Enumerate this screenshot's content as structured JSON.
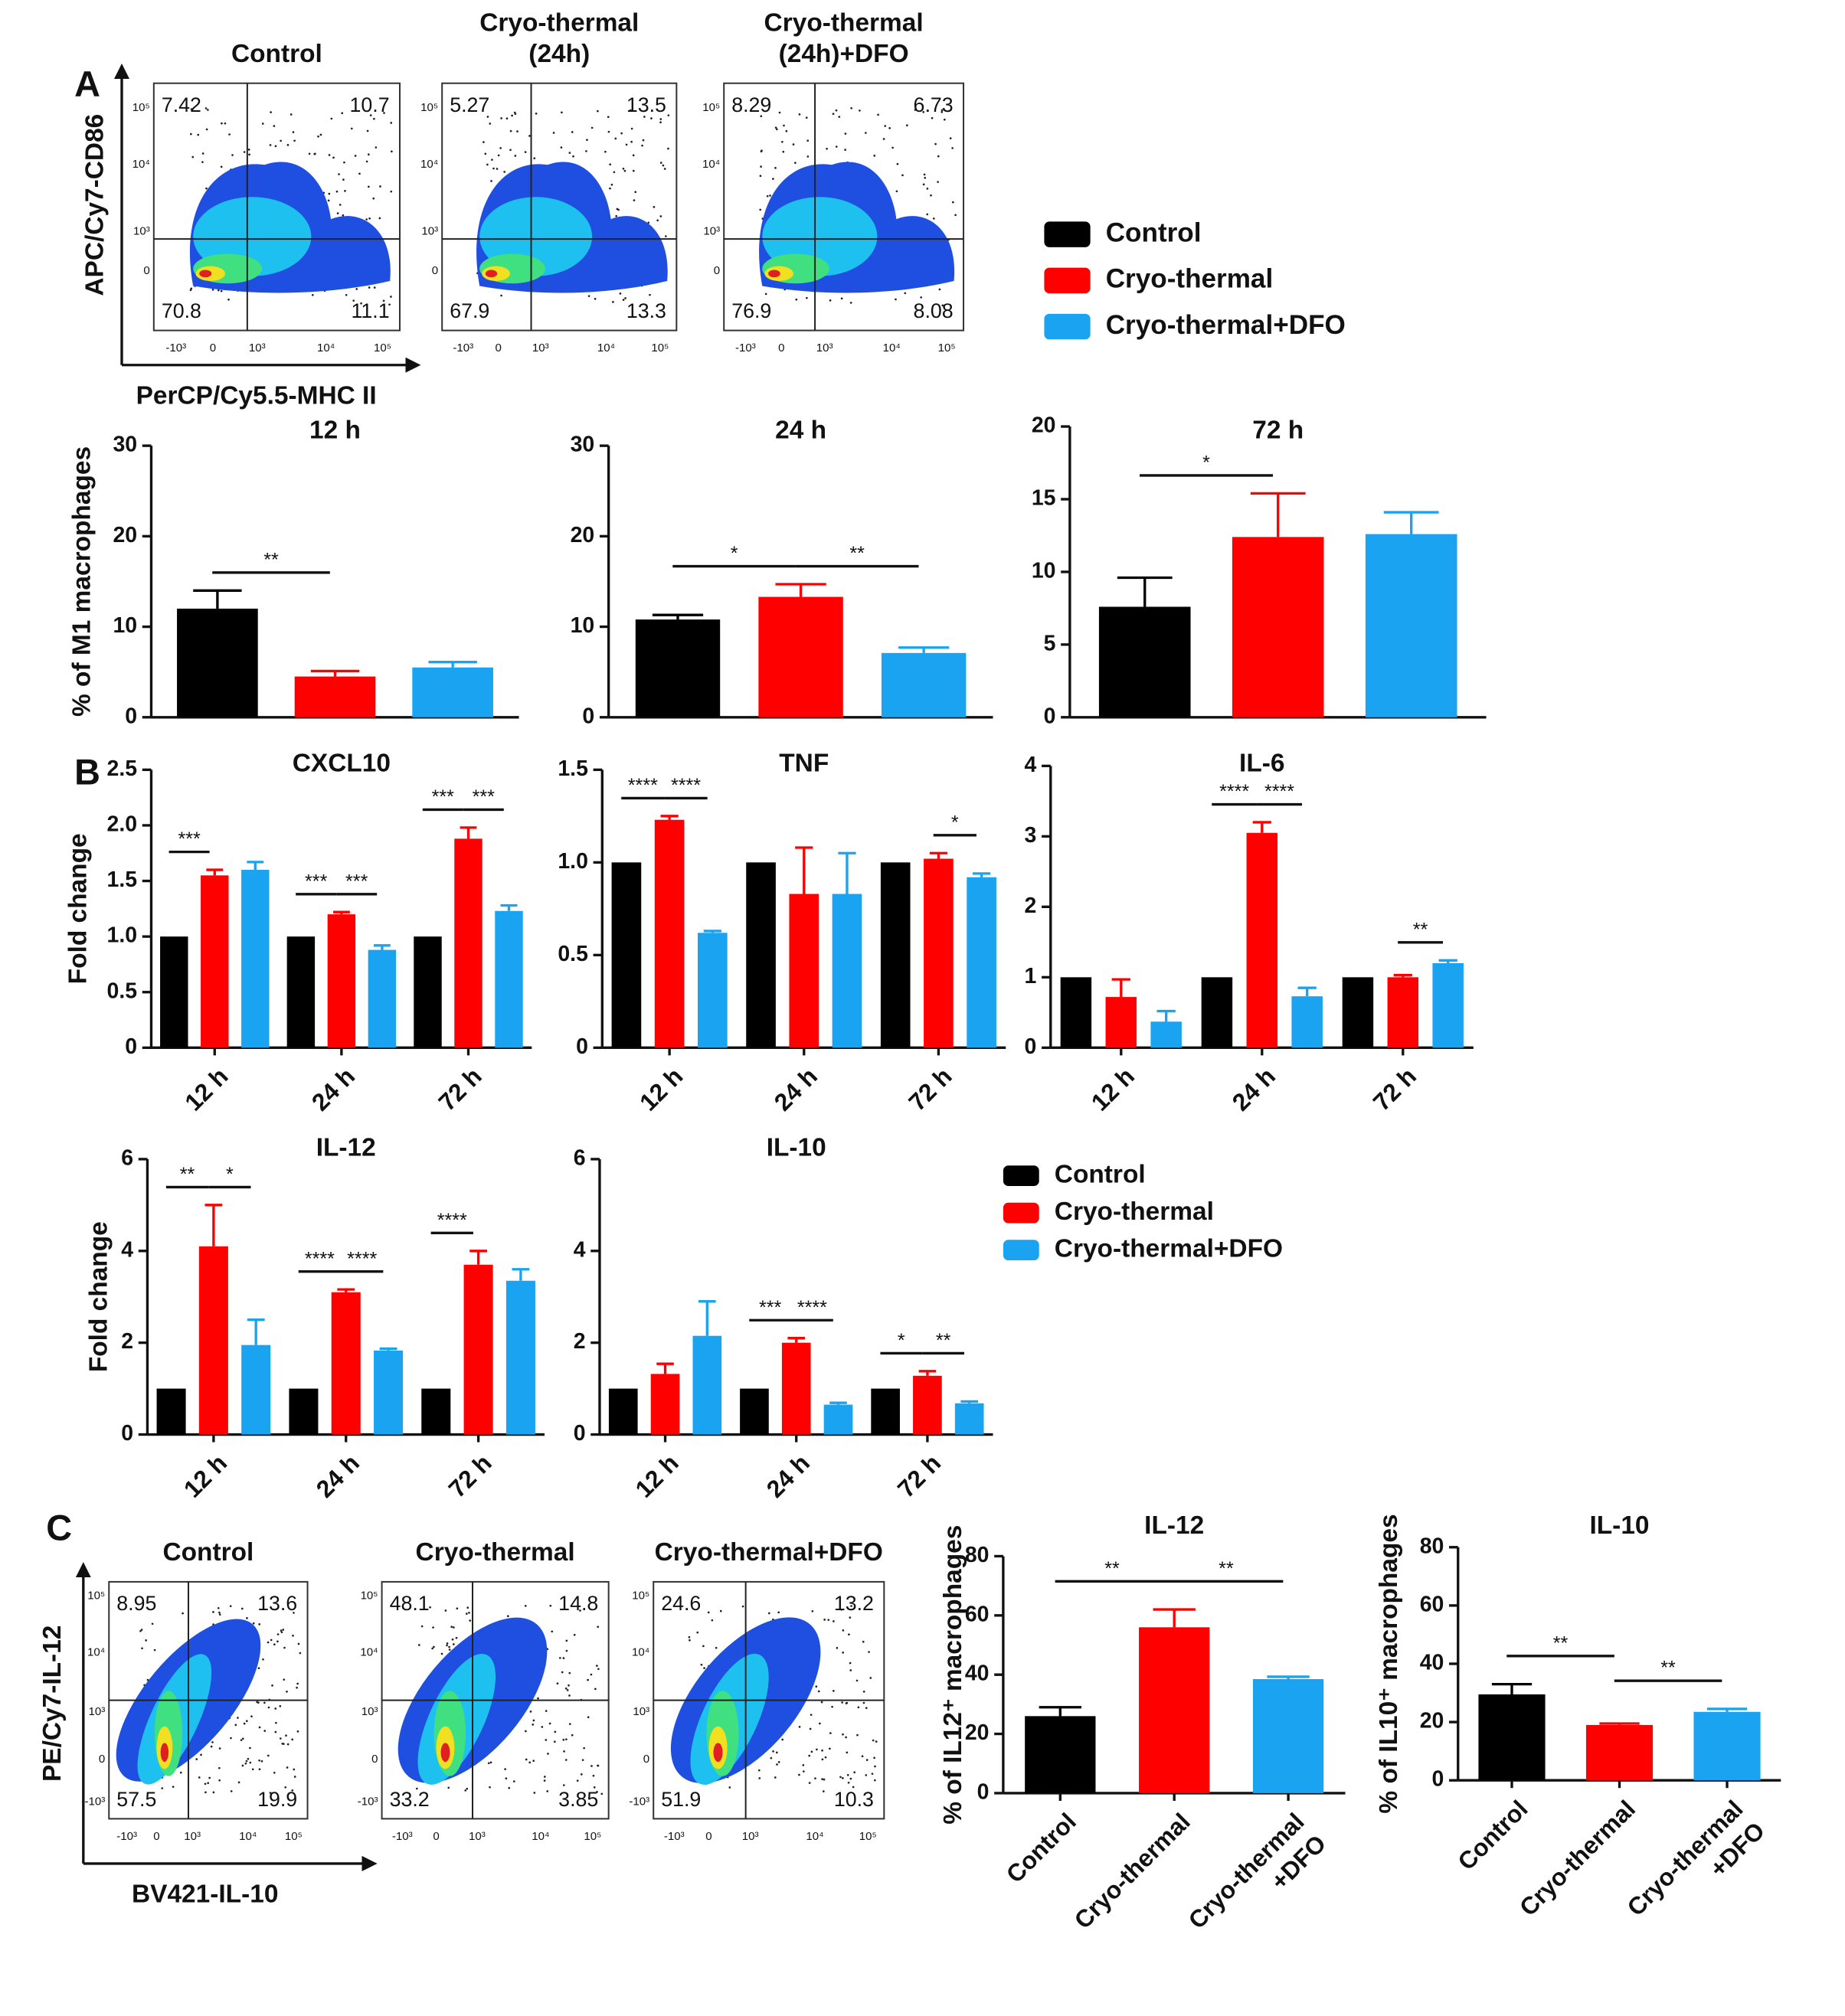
{
  "panel_labels": [
    "A",
    "B",
    "C"
  ],
  "flow_a": {
    "y_label": "APC/Cy7-CD86",
    "x_label": "PerCP/Cy5.5-MHC II",
    "y_ticks": [
      "10⁵",
      "10⁴",
      "10³",
      "0"
    ],
    "x_ticks": [
      "-10³",
      "0",
      "10³",
      "10⁴",
      "10⁵"
    ],
    "panels": [
      {
        "title": [
          "Control"
        ],
        "quadrants": [
          7.42,
          10.7,
          70.8,
          11.1
        ]
      },
      {
        "title": [
          "Cryo-thermal",
          "(24h)"
        ],
        "quadrants": [
          5.27,
          13.5,
          67.9,
          13.3
        ]
      },
      {
        "title": [
          "Cryo-thermal",
          "(24h)+DFO"
        ],
        "quadrants": [
          8.29,
          6.73,
          76.9,
          8.08
        ]
      }
    ]
  },
  "flow_c": {
    "y_label": "PE/Cy7-IL-12",
    "x_label": "BV421-IL-10",
    "y_ticks": [
      "10⁵",
      "10⁴",
      "10³",
      "0",
      "-10³"
    ],
    "x_ticks": [
      "-10³",
      "0",
      "10³",
      "10⁴",
      "10⁵"
    ],
    "panels": [
      {
        "title": [
          "Control"
        ],
        "quadrants": [
          8.95,
          13.6,
          57.5,
          19.9
        ]
      },
      {
        "title": [
          "Cryo-thermal"
        ],
        "quadrants": [
          48.1,
          14.8,
          33.2,
          3.85
        ]
      },
      {
        "title": [
          "Cryo-thermal+DFO"
        ],
        "quadrants": [
          24.6,
          13.2,
          51.9,
          10.3
        ]
      }
    ]
  },
  "chart_data": [
    {
      "type": "bar",
      "title": "12 h",
      "y_label": "% of M1 macrophages",
      "categories": [
        null
      ],
      "series": [
        {
          "name": "Control",
          "color": "#000000",
          "values": [
            12
          ],
          "errors": [
            2
          ]
        },
        {
          "name": "Cryo-thermal",
          "color": "#ff0000",
          "values": [
            4.5
          ],
          "errors": [
            0.6
          ]
        },
        {
          "name": "Cryo-thermal+DFO",
          "color": "#1aa3f0",
          "values": [
            5.5
          ],
          "errors": [
            0.6
          ]
        }
      ],
      "ylim": [
        0,
        30
      ],
      "yticks": [
        0,
        10,
        20,
        30
      ],
      "annotations": [
        {
          "text": "**",
          "category": 0,
          "between": [
            0,
            1
          ]
        }
      ]
    },
    {
      "type": "bar",
      "title": "24 h",
      "categories": [
        null
      ],
      "series": [
        {
          "name": "Control",
          "color": "#000000",
          "values": [
            10.8
          ],
          "errors": [
            0.5
          ]
        },
        {
          "name": "Cryo-thermal",
          "color": "#ff0000",
          "values": [
            13.3
          ],
          "errors": [
            1.4
          ]
        },
        {
          "name": "Cryo-thermal+DFO",
          "color": "#1aa3f0",
          "values": [
            7.1
          ],
          "errors": [
            0.6
          ]
        }
      ],
      "ylim": [
        0,
        30
      ],
      "yticks": [
        0,
        10,
        20,
        30
      ],
      "annotations": [
        {
          "text": "*",
          "category": 0,
          "between": [
            0,
            1
          ]
        },
        {
          "text": "**",
          "category": 0,
          "between": [
            1,
            2
          ]
        }
      ]
    },
    {
      "type": "bar",
      "title": "72 h",
      "categories": [
        null
      ],
      "series": [
        {
          "name": "Control",
          "color": "#000000",
          "values": [
            7.6
          ],
          "errors": [
            2.0
          ]
        },
        {
          "name": "Cryo-thermal",
          "color": "#ff0000",
          "values": [
            12.4
          ],
          "errors": [
            3.0
          ]
        },
        {
          "name": "Cryo-thermal+DFO",
          "color": "#1aa3f0",
          "values": [
            12.6
          ],
          "errors": [
            1.5
          ]
        }
      ],
      "ylim": [
        0,
        20
      ],
      "yticks": [
        0,
        5,
        10,
        15,
        20
      ],
      "annotations": [
        {
          "text": "*",
          "category": 0,
          "between": [
            0,
            1
          ]
        }
      ]
    },
    {
      "type": "bar",
      "title": "CXCL10",
      "y_label": "Fold change",
      "categories": [
        "12 h",
        "24 h",
        "72 h"
      ],
      "series": [
        {
          "name": "Control",
          "color": "#000000",
          "values": [
            1,
            1,
            1
          ],
          "errors": [
            0,
            0,
            0
          ]
        },
        {
          "name": "Cryo-thermal",
          "color": "#ff0000",
          "values": [
            1.55,
            1.2,
            1.88
          ],
          "errors": [
            0.05,
            0.02,
            0.1
          ]
        },
        {
          "name": "Cryo-thermal+DFO",
          "color": "#1aa3f0",
          "values": [
            1.6,
            0.88,
            1.23
          ],
          "errors": [
            0.07,
            0.04,
            0.05
          ]
        }
      ],
      "ylim": [
        0,
        2.5
      ],
      "yticks": [
        0,
        0.5,
        {
          "value": 1,
          "label": "1.0"
        },
        1.5,
        {
          "value": 2,
          "label": "2.0"
        },
        2.5
      ],
      "annotations": [
        {
          "text": "***",
          "category": 0,
          "between": [
            0,
            1
          ]
        },
        {
          "text": "***",
          "category": 1,
          "between": [
            0,
            1
          ]
        },
        {
          "text": "***",
          "category": 1,
          "between": [
            1,
            2
          ]
        },
        {
          "text": "***",
          "category": 2,
          "between": [
            0,
            1
          ]
        },
        {
          "text": "***",
          "category": 2,
          "between": [
            1,
            2
          ]
        }
      ]
    },
    {
      "type": "bar",
      "title": "TNF",
      "categories": [
        "12 h",
        "24 h",
        "72 h"
      ],
      "series": [
        {
          "name": "Control",
          "color": "#000000",
          "values": [
            1,
            1,
            1
          ],
          "errors": [
            0,
            0,
            0
          ]
        },
        {
          "name": "Cryo-thermal",
          "color": "#ff0000",
          "values": [
            1.23,
            0.83,
            1.02
          ],
          "errors": [
            0.02,
            0.25,
            0.03
          ]
        },
        {
          "name": "Cryo-thermal+DFO",
          "color": "#1aa3f0",
          "values": [
            0.62,
            0.83,
            0.92
          ],
          "errors": [
            0.01,
            0.22,
            0.02
          ]
        }
      ],
      "ylim": [
        0,
        1.5
      ],
      "yticks": [
        0,
        0.5,
        {
          "value": 1,
          "label": "1.0"
        },
        1.5
      ],
      "annotations": [
        {
          "text": "****",
          "category": 0,
          "between": [
            0,
            1
          ]
        },
        {
          "text": "****",
          "category": 0,
          "between": [
            1,
            2
          ]
        },
        {
          "text": "*",
          "category": 2,
          "between": [
            1,
            2
          ]
        }
      ]
    },
    {
      "type": "bar",
      "title": "IL-6",
      "categories": [
        "12 h",
        "24 h",
        "72 h"
      ],
      "series": [
        {
          "name": "Control",
          "color": "#000000",
          "values": [
            1,
            1,
            1
          ],
          "errors": [
            0,
            0,
            0
          ]
        },
        {
          "name": "Cryo-thermal",
          "color": "#ff0000",
          "values": [
            0.72,
            3.05,
            1.0
          ],
          "errors": [
            0.25,
            0.15,
            0.03
          ]
        },
        {
          "name": "Cryo-thermal+DFO",
          "color": "#1aa3f0",
          "values": [
            0.37,
            0.73,
            1.2
          ],
          "errors": [
            0.15,
            0.12,
            0.04
          ]
        }
      ],
      "ylim": [
        0,
        4
      ],
      "yticks": [
        0,
        1,
        2,
        3,
        4
      ],
      "annotations": [
        {
          "text": "****",
          "category": 1,
          "between": [
            0,
            1
          ]
        },
        {
          "text": "****",
          "category": 1,
          "between": [
            1,
            2
          ]
        },
        {
          "text": "**",
          "category": 2,
          "between": [
            1,
            2
          ]
        }
      ]
    },
    {
      "type": "bar",
      "title": "IL-12",
      "y_label": "Fold change",
      "categories": [
        "12 h",
        "24 h",
        "72 h"
      ],
      "series": [
        {
          "name": "Control",
          "color": "#000000",
          "values": [
            1,
            1,
            1
          ],
          "errors": [
            0,
            0,
            0
          ]
        },
        {
          "name": "Cryo-thermal",
          "color": "#ff0000",
          "values": [
            4.1,
            3.1,
            3.7
          ],
          "errors": [
            0.9,
            0.06,
            0.3
          ]
        },
        {
          "name": "Cryo-thermal+DFO",
          "color": "#1aa3f0",
          "values": [
            1.95,
            1.83,
            3.35
          ],
          "errors": [
            0.55,
            0.04,
            0.25
          ]
        }
      ],
      "ylim": [
        0,
        6
      ],
      "yticks": [
        0,
        2,
        4,
        6
      ],
      "annotations": [
        {
          "text": "**",
          "category": 0,
          "between": [
            0,
            1
          ]
        },
        {
          "text": "*",
          "category": 0,
          "between": [
            1,
            2
          ]
        },
        {
          "text": "****",
          "category": 1,
          "between": [
            0,
            1
          ]
        },
        {
          "text": "****",
          "category": 1,
          "between": [
            1,
            2
          ]
        },
        {
          "text": "****",
          "category": 2,
          "between": [
            0,
            1
          ]
        }
      ]
    },
    {
      "type": "bar",
      "title": "IL-10",
      "categories": [
        "12 h",
        "24 h",
        "72 h"
      ],
      "series": [
        {
          "name": "Control",
          "color": "#000000",
          "values": [
            1,
            1,
            1
          ],
          "errors": [
            0,
            0,
            0
          ]
        },
        {
          "name": "Cryo-thermal",
          "color": "#ff0000",
          "values": [
            1.32,
            2.0,
            1.28
          ],
          "errors": [
            0.22,
            0.1,
            0.1
          ]
        },
        {
          "name": "Cryo-thermal+DFO",
          "color": "#1aa3f0",
          "values": [
            2.15,
            0.65,
            0.68
          ],
          "errors": [
            0.75,
            0.04,
            0.04
          ]
        }
      ],
      "ylim": [
        0,
        6
      ],
      "yticks": [
        0,
        2,
        4,
        6
      ],
      "annotations": [
        {
          "text": "***",
          "category": 1,
          "between": [
            0,
            1
          ]
        },
        {
          "text": "****",
          "category": 1,
          "between": [
            1,
            2
          ]
        },
        {
          "text": "*",
          "category": 2,
          "between": [
            0,
            1
          ]
        },
        {
          "text": "**",
          "category": 2,
          "between": [
            1,
            2
          ]
        }
      ]
    },
    {
      "type": "bar",
      "title": "IL-12",
      "y_label": "% of IL12⁺ macrophages",
      "categories": [
        [
          "Control"
        ],
        [
          "Cryo-thermal"
        ],
        [
          "Cryo-thermal",
          "+DFO"
        ]
      ],
      "values": [
        26,
        56,
        38.5
      ],
      "errors": [
        3,
        6,
        0.8
      ],
      "colors": [
        "#000000",
        "#ff0000",
        "#1aa3f0"
      ],
      "ylim": [
        0,
        80
      ],
      "yticks": [
        0,
        20,
        40,
        60,
        80
      ],
      "annotations": [
        {
          "text": "**",
          "between": [
            0,
            1
          ]
        },
        {
          "text": "**",
          "between": [
            1,
            2
          ]
        }
      ]
    },
    {
      "type": "bar",
      "title": "IL-10",
      "y_label": "% of IL10⁺ macrophages",
      "categories": [
        [
          "Control"
        ],
        [
          "Cryo-thermal"
        ],
        [
          "Cryo-thermal",
          "+DFO"
        ]
      ],
      "values": [
        29.5,
        19,
        23.5
      ],
      "errors": [
        3.5,
        0.5,
        1
      ],
      "colors": [
        "#000000",
        "#ff0000",
        "#1aa3f0"
      ],
      "ylim": [
        0,
        80
      ],
      "yticks": [
        0,
        20,
        40,
        60,
        80
      ],
      "annotations": [
        {
          "text": "**",
          "between": [
            0,
            1
          ]
        },
        {
          "text": "**",
          "between": [
            1,
            2
          ]
        }
      ]
    }
  ]
}
